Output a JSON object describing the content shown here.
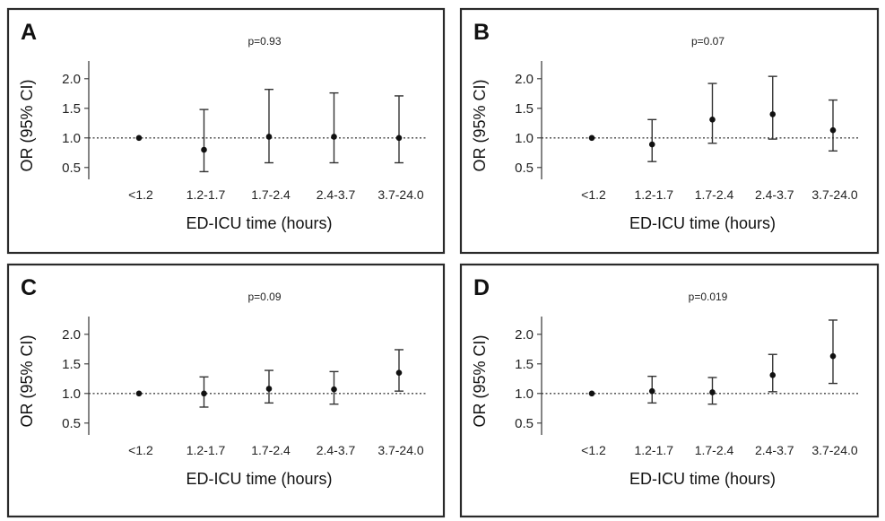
{
  "chart_data": [
    {
      "type": "scatter",
      "panel": "A",
      "annotation": "p=0.93",
      "xlabel": "ED-ICU time (hours)",
      "ylabel": "OR (95% CI)",
      "categories": [
        "<1.2",
        "1.2-1.7",
        "1.7-2.4",
        "2.4-3.7",
        "3.7-24.0"
      ],
      "values": [
        1.0,
        0.8,
        1.02,
        1.02,
        1.0
      ],
      "ci_low": [
        1.0,
        0.43,
        0.58,
        0.58,
        0.58
      ],
      "ci_high": [
        1.0,
        1.48,
        1.82,
        1.76,
        1.71
      ],
      "yticks": [
        "0.5",
        "1.0",
        "1.5",
        "2.0"
      ],
      "ylim": [
        0.3,
        2.3
      ],
      "reference_line": 1.0
    },
    {
      "type": "scatter",
      "panel": "B",
      "annotation": "p=0.07",
      "xlabel": "ED-ICU time (hours)",
      "ylabel": "OR (95% CI)",
      "categories": [
        "<1.2",
        "1.2-1.7",
        "1.7-2.4",
        "2.4-3.7",
        "3.7-24.0"
      ],
      "values": [
        1.0,
        0.89,
        1.31,
        1.4,
        1.13
      ],
      "ci_low": [
        1.0,
        0.6,
        0.91,
        0.98,
        0.78
      ],
      "ci_high": [
        1.0,
        1.31,
        1.92,
        2.04,
        1.64
      ],
      "yticks": [
        "0.5",
        "1.0",
        "1.5",
        "2.0"
      ],
      "ylim": [
        0.3,
        2.3
      ],
      "reference_line": 1.0
    },
    {
      "type": "scatter",
      "panel": "C",
      "annotation": "p=0.09",
      "xlabel": "ED-ICU time (hours)",
      "ylabel": "OR (95% CI)",
      "categories": [
        "<1.2",
        "1.2-1.7",
        "1.7-2.4",
        "2.4-3.7",
        "3.7-24.0"
      ],
      "values": [
        1.0,
        1.0,
        1.08,
        1.07,
        1.35
      ],
      "ci_low": [
        1.0,
        0.77,
        0.84,
        0.82,
        1.04
      ],
      "ci_high": [
        1.0,
        1.28,
        1.39,
        1.37,
        1.74
      ],
      "yticks": [
        "0.5",
        "1.0",
        "1.5",
        "2.0"
      ],
      "ylim": [
        0.3,
        2.3
      ],
      "reference_line": 1.0
    },
    {
      "type": "scatter",
      "panel": "D",
      "annotation": "p=0.019",
      "xlabel": "ED-ICU time (hours)",
      "ylabel": "OR (95% CI)",
      "categories": [
        "<1.2",
        "1.2-1.7",
        "1.7-2.4",
        "2.4-3.7",
        "3.7-24.0"
      ],
      "values": [
        1.0,
        1.04,
        1.02,
        1.31,
        1.63
      ],
      "ci_low": [
        1.0,
        0.84,
        0.82,
        1.03,
        1.17
      ],
      "ci_high": [
        1.0,
        1.29,
        1.27,
        1.66,
        2.24
      ],
      "yticks": [
        "0.5",
        "1.0",
        "1.5",
        "2.0"
      ],
      "ylim": [
        0.3,
        2.3
      ],
      "reference_line": 1.0
    }
  ]
}
